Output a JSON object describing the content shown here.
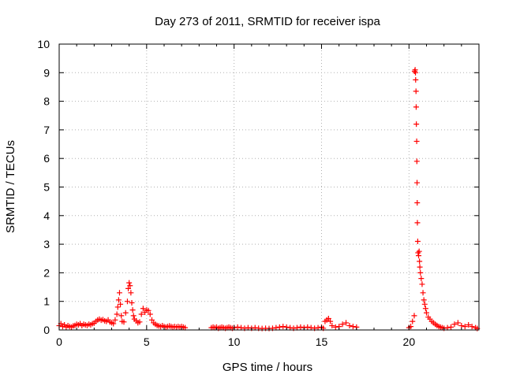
{
  "chart_data": {
    "type": "scatter",
    "title": "Day 273 of 2011, SRMTID for receiver ispa",
    "xlabel": "GPS time / hours",
    "ylabel": "SRMTID / TECUs",
    "xlim": [
      0,
      24
    ],
    "ylim": [
      0,
      10
    ],
    "xticks": [
      0,
      5,
      10,
      15,
      20
    ],
    "yticks": [
      0,
      1,
      2,
      3,
      4,
      5,
      6,
      7,
      8,
      9,
      10
    ],
    "grid": true,
    "grid_style": "dotted",
    "marker": "+",
    "colors": {
      "series": "#ff0000",
      "grid": "#b0b0b0",
      "frame": "#000000"
    },
    "series": [
      {
        "points": [
          [
            0.0,
            0.15
          ],
          [
            0.1,
            0.22
          ],
          [
            0.2,
            0.12
          ],
          [
            0.3,
            0.18
          ],
          [
            0.4,
            0.1
          ],
          [
            0.5,
            0.15
          ],
          [
            0.6,
            0.12
          ],
          [
            0.7,
            0.1
          ],
          [
            0.8,
            0.14
          ],
          [
            0.9,
            0.16
          ],
          [
            1.0,
            0.2
          ],
          [
            1.1,
            0.18
          ],
          [
            1.2,
            0.22
          ],
          [
            1.3,
            0.15
          ],
          [
            1.4,
            0.2
          ],
          [
            1.5,
            0.18
          ],
          [
            1.6,
            0.16
          ],
          [
            1.7,
            0.2
          ],
          [
            1.8,
            0.18
          ],
          [
            1.9,
            0.22
          ],
          [
            2.0,
            0.24
          ],
          [
            2.1,
            0.3
          ],
          [
            2.2,
            0.35
          ],
          [
            2.3,
            0.38
          ],
          [
            2.4,
            0.34
          ],
          [
            2.5,
            0.36
          ],
          [
            2.6,
            0.32
          ],
          [
            2.7,
            0.3
          ],
          [
            2.8,
            0.35
          ],
          [
            2.9,
            0.28
          ],
          [
            3.0,
            0.25
          ],
          [
            3.1,
            0.22
          ],
          [
            3.2,
            0.35
          ],
          [
            3.3,
            0.55
          ],
          [
            3.35,
            0.8
          ],
          [
            3.4,
            1.05
          ],
          [
            3.45,
            1.3
          ],
          [
            3.5,
            0.9
          ],
          [
            3.55,
            0.5
          ],
          [
            3.6,
            0.3
          ],
          [
            3.7,
            0.28
          ],
          [
            3.8,
            0.6
          ],
          [
            3.9,
            1.0
          ],
          [
            3.95,
            1.45
          ],
          [
            4.0,
            1.65
          ],
          [
            4.05,
            1.55
          ],
          [
            4.1,
            1.3
          ],
          [
            4.15,
            0.95
          ],
          [
            4.2,
            0.7
          ],
          [
            4.25,
            0.5
          ],
          [
            4.3,
            0.38
          ],
          [
            4.4,
            0.32
          ],
          [
            4.5,
            0.25
          ],
          [
            4.6,
            0.28
          ],
          [
            4.7,
            0.55
          ],
          [
            4.8,
            0.75
          ],
          [
            4.9,
            0.62
          ],
          [
            5.0,
            0.7
          ],
          [
            5.1,
            0.68
          ],
          [
            5.2,
            0.55
          ],
          [
            5.3,
            0.35
          ],
          [
            5.4,
            0.25
          ],
          [
            5.5,
            0.2
          ],
          [
            5.6,
            0.16
          ],
          [
            5.7,
            0.14
          ],
          [
            5.8,
            0.12
          ],
          [
            5.9,
            0.15
          ],
          [
            6.0,
            0.12
          ],
          [
            6.1,
            0.1
          ],
          [
            6.2,
            0.12
          ],
          [
            6.3,
            0.14
          ],
          [
            6.4,
            0.12
          ],
          [
            6.5,
            0.1
          ],
          [
            6.6,
            0.12
          ],
          [
            6.7,
            0.1
          ],
          [
            6.8,
            0.12
          ],
          [
            6.9,
            0.1
          ],
          [
            7.0,
            0.12
          ],
          [
            7.1,
            0.1
          ],
          [
            7.2,
            0.08
          ],
          [
            8.7,
            0.08
          ],
          [
            8.8,
            0.1
          ],
          [
            8.9,
            0.08
          ],
          [
            9.0,
            0.1
          ],
          [
            9.1,
            0.06
          ],
          [
            9.2,
            0.08
          ],
          [
            9.3,
            0.1
          ],
          [
            9.4,
            0.08
          ],
          [
            9.5,
            0.06
          ],
          [
            9.6,
            0.08
          ],
          [
            9.7,
            0.1
          ],
          [
            9.8,
            0.08
          ],
          [
            9.9,
            0.06
          ],
          [
            10.0,
            0.08
          ],
          [
            10.2,
            0.1
          ],
          [
            10.4,
            0.08
          ],
          [
            10.6,
            0.06
          ],
          [
            10.8,
            0.08
          ],
          [
            11.0,
            0.06
          ],
          [
            11.2,
            0.08
          ],
          [
            11.4,
            0.06
          ],
          [
            11.6,
            0.05
          ],
          [
            11.8,
            0.06
          ],
          [
            12.0,
            0.05
          ],
          [
            12.2,
            0.06
          ],
          [
            12.4,
            0.08
          ],
          [
            12.6,
            0.1
          ],
          [
            12.8,
            0.12
          ],
          [
            13.0,
            0.1
          ],
          [
            13.2,
            0.08
          ],
          [
            13.4,
            0.06
          ],
          [
            13.6,
            0.08
          ],
          [
            13.8,
            0.1
          ],
          [
            14.0,
            0.08
          ],
          [
            14.2,
            0.1
          ],
          [
            14.4,
            0.08
          ],
          [
            14.6,
            0.06
          ],
          [
            14.8,
            0.08
          ],
          [
            15.0,
            0.1
          ],
          [
            15.1,
            0.06
          ],
          [
            15.2,
            0.3
          ],
          [
            15.3,
            0.35
          ],
          [
            15.4,
            0.4
          ],
          [
            15.5,
            0.3
          ],
          [
            15.6,
            0.15
          ],
          [
            15.8,
            0.1
          ],
          [
            16.0,
            0.12
          ],
          [
            16.2,
            0.2
          ],
          [
            16.4,
            0.25
          ],
          [
            16.6,
            0.15
          ],
          [
            16.8,
            0.12
          ],
          [
            17.0,
            0.1
          ],
          [
            20.0,
            0.08
          ],
          [
            20.1,
            0.12
          ],
          [
            20.2,
            0.3
          ],
          [
            20.3,
            0.5
          ],
          [
            20.32,
            9.05
          ],
          [
            20.35,
            9.1
          ],
          [
            20.37,
            9.0
          ],
          [
            20.38,
            8.75
          ],
          [
            20.4,
            8.35
          ],
          [
            20.41,
            7.8
          ],
          [
            20.42,
            7.2
          ],
          [
            20.44,
            6.6
          ],
          [
            20.45,
            5.9
          ],
          [
            20.46,
            5.15
          ],
          [
            20.47,
            4.45
          ],
          [
            20.48,
            3.75
          ],
          [
            20.5,
            3.1
          ],
          [
            20.52,
            2.7
          ],
          [
            20.55,
            2.6
          ],
          [
            20.58,
            2.75
          ],
          [
            20.6,
            2.4
          ],
          [
            20.62,
            2.2
          ],
          [
            20.65,
            2.0
          ],
          [
            20.7,
            1.8
          ],
          [
            20.75,
            1.6
          ],
          [
            20.8,
            1.3
          ],
          [
            20.85,
            1.05
          ],
          [
            20.9,
            0.9
          ],
          [
            20.95,
            0.75
          ],
          [
            21.0,
            0.6
          ],
          [
            21.1,
            0.45
          ],
          [
            21.2,
            0.38
          ],
          [
            21.3,
            0.3
          ],
          [
            21.4,
            0.25
          ],
          [
            21.5,
            0.2
          ],
          [
            21.6,
            0.16
          ],
          [
            21.7,
            0.12
          ],
          [
            21.8,
            0.1
          ],
          [
            21.9,
            0.08
          ],
          [
            22.0,
            0.06
          ],
          [
            22.2,
            0.08
          ],
          [
            22.4,
            0.1
          ],
          [
            22.6,
            0.2
          ],
          [
            22.8,
            0.25
          ],
          [
            23.0,
            0.15
          ],
          [
            23.2,
            0.12
          ],
          [
            23.4,
            0.18
          ],
          [
            23.6,
            0.12
          ],
          [
            23.8,
            0.08
          ],
          [
            23.9,
            0.05
          ]
        ]
      }
    ]
  }
}
